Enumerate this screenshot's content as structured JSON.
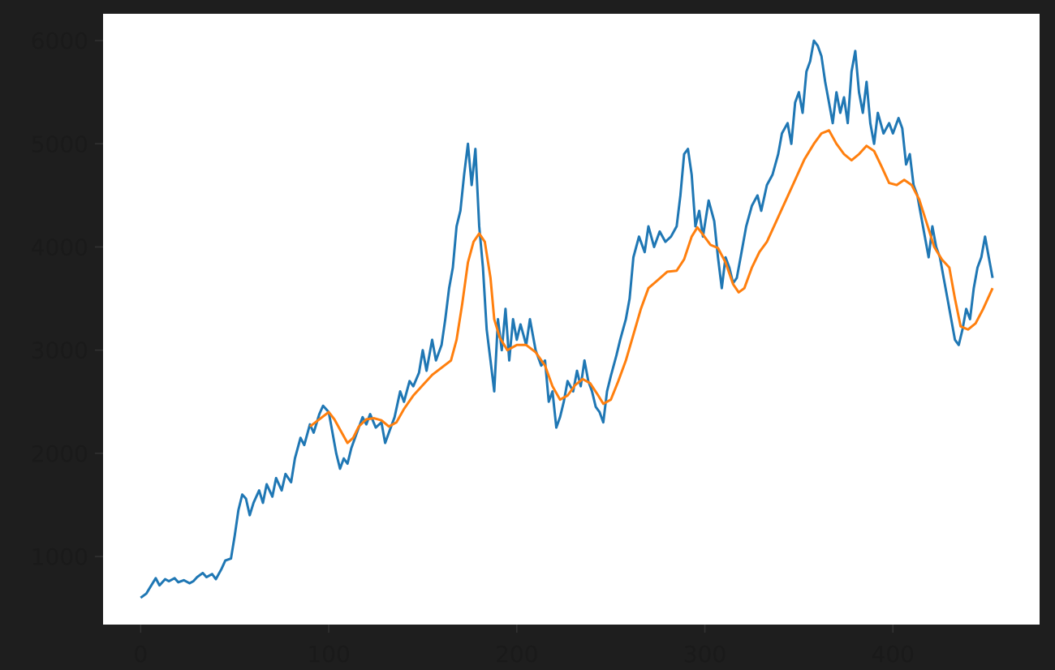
{
  "chart_data": {
    "type": "line",
    "title": "",
    "xlabel": "",
    "ylabel": "",
    "xlim": [
      -20,
      478
    ],
    "ylim": [
      340,
      6260
    ],
    "xticks": [
      0,
      100,
      200,
      300,
      400
    ],
    "yticks": [
      1000,
      2000,
      3000,
      4000,
      5000,
      6000
    ],
    "grid": false,
    "legend": "none",
    "background": "#1e1e1e",
    "plot_background": "#ffffff",
    "series": [
      {
        "color": "#1f77b4",
        "points": [
          [
            0,
            600
          ],
          [
            3,
            640
          ],
          [
            5,
            700
          ],
          [
            8,
            790
          ],
          [
            10,
            720
          ],
          [
            13,
            780
          ],
          [
            15,
            760
          ],
          [
            18,
            790
          ],
          [
            20,
            750
          ],
          [
            23,
            770
          ],
          [
            26,
            740
          ],
          [
            28,
            760
          ],
          [
            30,
            800
          ],
          [
            33,
            840
          ],
          [
            35,
            800
          ],
          [
            38,
            830
          ],
          [
            40,
            780
          ],
          [
            43,
            880
          ],
          [
            45,
            960
          ],
          [
            48,
            980
          ],
          [
            50,
            1200
          ],
          [
            52,
            1450
          ],
          [
            54,
            1600
          ],
          [
            56,
            1560
          ],
          [
            58,
            1400
          ],
          [
            60,
            1520
          ],
          [
            63,
            1640
          ],
          [
            65,
            1520
          ],
          [
            67,
            1700
          ],
          [
            70,
            1580
          ],
          [
            72,
            1760
          ],
          [
            75,
            1640
          ],
          [
            77,
            1800
          ],
          [
            80,
            1720
          ],
          [
            82,
            1950
          ],
          [
            85,
            2150
          ],
          [
            87,
            2080
          ],
          [
            90,
            2280
          ],
          [
            92,
            2200
          ],
          [
            95,
            2380
          ],
          [
            97,
            2460
          ],
          [
            100,
            2400
          ],
          [
            102,
            2200
          ],
          [
            104,
            2000
          ],
          [
            106,
            1850
          ],
          [
            108,
            1950
          ],
          [
            110,
            1900
          ],
          [
            112,
            2050
          ],
          [
            115,
            2200
          ],
          [
            118,
            2350
          ],
          [
            120,
            2280
          ],
          [
            122,
            2380
          ],
          [
            125,
            2250
          ],
          [
            128,
            2300
          ],
          [
            130,
            2100
          ],
          [
            132,
            2200
          ],
          [
            135,
            2350
          ],
          [
            138,
            2600
          ],
          [
            140,
            2500
          ],
          [
            143,
            2700
          ],
          [
            145,
            2650
          ],
          [
            148,
            2780
          ],
          [
            150,
            3000
          ],
          [
            152,
            2800
          ],
          [
            155,
            3100
          ],
          [
            157,
            2900
          ],
          [
            160,
            3050
          ],
          [
            162,
            3300
          ],
          [
            164,
            3600
          ],
          [
            166,
            3800
          ],
          [
            168,
            4200
          ],
          [
            170,
            4350
          ],
          [
            172,
            4700
          ],
          [
            174,
            5000
          ],
          [
            176,
            4600
          ],
          [
            178,
            4950
          ],
          [
            180,
            4200
          ],
          [
            182,
            3800
          ],
          [
            184,
            3200
          ],
          [
            186,
            2900
          ],
          [
            188,
            2600
          ],
          [
            190,
            3300
          ],
          [
            192,
            3000
          ],
          [
            194,
            3400
          ],
          [
            196,
            2900
          ],
          [
            198,
            3300
          ],
          [
            200,
            3100
          ],
          [
            202,
            3250
          ],
          [
            205,
            3050
          ],
          [
            207,
            3300
          ],
          [
            210,
            3000
          ],
          [
            213,
            2850
          ],
          [
            215,
            2900
          ],
          [
            217,
            2500
          ],
          [
            219,
            2600
          ],
          [
            221,
            2250
          ],
          [
            223,
            2350
          ],
          [
            225,
            2500
          ],
          [
            227,
            2700
          ],
          [
            230,
            2600
          ],
          [
            232,
            2800
          ],
          [
            234,
            2650
          ],
          [
            236,
            2900
          ],
          [
            238,
            2700
          ],
          [
            240,
            2600
          ],
          [
            242,
            2450
          ],
          [
            244,
            2400
          ],
          [
            246,
            2300
          ],
          [
            248,
            2600
          ],
          [
            250,
            2750
          ],
          [
            253,
            2950
          ],
          [
            255,
            3100
          ],
          [
            258,
            3300
          ],
          [
            260,
            3500
          ],
          [
            262,
            3900
          ],
          [
            265,
            4100
          ],
          [
            268,
            3950
          ],
          [
            270,
            4200
          ],
          [
            273,
            4000
          ],
          [
            276,
            4150
          ],
          [
            279,
            4050
          ],
          [
            282,
            4100
          ],
          [
            285,
            4200
          ],
          [
            287,
            4500
          ],
          [
            289,
            4900
          ],
          [
            291,
            4950
          ],
          [
            293,
            4700
          ],
          [
            295,
            4200
          ],
          [
            297,
            4350
          ],
          [
            299,
            4100
          ],
          [
            302,
            4450
          ],
          [
            305,
            4250
          ],
          [
            307,
            3900
          ],
          [
            309,
            3600
          ],
          [
            311,
            3900
          ],
          [
            313,
            3800
          ],
          [
            315,
            3650
          ],
          [
            317,
            3700
          ],
          [
            319,
            3900
          ],
          [
            322,
            4200
          ],
          [
            325,
            4400
          ],
          [
            328,
            4500
          ],
          [
            330,
            4350
          ],
          [
            333,
            4600
          ],
          [
            336,
            4700
          ],
          [
            339,
            4900
          ],
          [
            341,
            5100
          ],
          [
            344,
            5200
          ],
          [
            346,
            5000
          ],
          [
            348,
            5400
          ],
          [
            350,
            5500
          ],
          [
            352,
            5300
          ],
          [
            354,
            5700
          ],
          [
            356,
            5800
          ],
          [
            358,
            6000
          ],
          [
            360,
            5950
          ],
          [
            362,
            5850
          ],
          [
            364,
            5600
          ],
          [
            366,
            5400
          ],
          [
            368,
            5200
          ],
          [
            370,
            5500
          ],
          [
            372,
            5300
          ],
          [
            374,
            5450
          ],
          [
            376,
            5200
          ],
          [
            378,
            5700
          ],
          [
            380,
            5900
          ],
          [
            382,
            5500
          ],
          [
            384,
            5300
          ],
          [
            386,
            5600
          ],
          [
            388,
            5200
          ],
          [
            390,
            5000
          ],
          [
            392,
            5300
          ],
          [
            395,
            5100
          ],
          [
            398,
            5200
          ],
          [
            400,
            5100
          ],
          [
            403,
            5250
          ],
          [
            405,
            5150
          ],
          [
            407,
            4800
          ],
          [
            409,
            4900
          ],
          [
            411,
            4600
          ],
          [
            413,
            4500
          ],
          [
            415,
            4300
          ],
          [
            417,
            4100
          ],
          [
            419,
            3900
          ],
          [
            421,
            4200
          ],
          [
            423,
            4000
          ],
          [
            425,
            3900
          ],
          [
            427,
            3700
          ],
          [
            429,
            3500
          ],
          [
            431,
            3300
          ],
          [
            433,
            3100
          ],
          [
            435,
            3050
          ],
          [
            437,
            3200
          ],
          [
            439,
            3400
          ],
          [
            441,
            3300
          ],
          [
            443,
            3600
          ],
          [
            445,
            3800
          ],
          [
            447,
            3900
          ],
          [
            449,
            4100
          ],
          [
            451,
            3900
          ],
          [
            453,
            3700
          ]
        ]
      },
      {
        "color": "#ff7f0e",
        "points": [
          [
            90,
            2260
          ],
          [
            95,
            2330
          ],
          [
            100,
            2400
          ],
          [
            103,
            2330
          ],
          [
            106,
            2230
          ],
          [
            110,
            2100
          ],
          [
            113,
            2150
          ],
          [
            116,
            2260
          ],
          [
            120,
            2330
          ],
          [
            124,
            2340
          ],
          [
            128,
            2320
          ],
          [
            132,
            2260
          ],
          [
            136,
            2300
          ],
          [
            140,
            2430
          ],
          [
            145,
            2560
          ],
          [
            150,
            2660
          ],
          [
            155,
            2760
          ],
          [
            160,
            2830
          ],
          [
            165,
            2900
          ],
          [
            168,
            3100
          ],
          [
            171,
            3450
          ],
          [
            174,
            3850
          ],
          [
            177,
            4050
          ],
          [
            180,
            4130
          ],
          [
            183,
            4050
          ],
          [
            186,
            3700
          ],
          [
            188,
            3300
          ],
          [
            191,
            3120
          ],
          [
            195,
            3000
          ],
          [
            200,
            3050
          ],
          [
            205,
            3050
          ],
          [
            210,
            2980
          ],
          [
            215,
            2850
          ],
          [
            219,
            2650
          ],
          [
            223,
            2520
          ],
          [
            227,
            2560
          ],
          [
            231,
            2660
          ],
          [
            235,
            2720
          ],
          [
            239,
            2680
          ],
          [
            243,
            2570
          ],
          [
            246,
            2480
          ],
          [
            250,
            2520
          ],
          [
            254,
            2700
          ],
          [
            258,
            2900
          ],
          [
            262,
            3150
          ],
          [
            266,
            3400
          ],
          [
            270,
            3600
          ],
          [
            275,
            3680
          ],
          [
            280,
            3760
          ],
          [
            285,
            3770
          ],
          [
            289,
            3880
          ],
          [
            293,
            4100
          ],
          [
            296,
            4190
          ],
          [
            299,
            4120
          ],
          [
            303,
            4020
          ],
          [
            307,
            3990
          ],
          [
            311,
            3850
          ],
          [
            315,
            3640
          ],
          [
            318,
            3560
          ],
          [
            321,
            3600
          ],
          [
            325,
            3800
          ],
          [
            329,
            3950
          ],
          [
            333,
            4050
          ],
          [
            338,
            4250
          ],
          [
            343,
            4450
          ],
          [
            348,
            4650
          ],
          [
            353,
            4850
          ],
          [
            358,
            5000
          ],
          [
            362,
            5100
          ],
          [
            366,
            5130
          ],
          [
            370,
            5000
          ],
          [
            374,
            4900
          ],
          [
            378,
            4840
          ],
          [
            382,
            4900
          ],
          [
            386,
            4980
          ],
          [
            390,
            4930
          ],
          [
            394,
            4780
          ],
          [
            398,
            4620
          ],
          [
            402,
            4600
          ],
          [
            406,
            4650
          ],
          [
            410,
            4600
          ],
          [
            414,
            4460
          ],
          [
            418,
            4230
          ],
          [
            422,
            4000
          ],
          [
            426,
            3880
          ],
          [
            430,
            3800
          ],
          [
            433,
            3500
          ],
          [
            436,
            3230
          ],
          [
            440,
            3200
          ],
          [
            444,
            3260
          ],
          [
            448,
            3400
          ],
          [
            453,
            3600
          ]
        ]
      }
    ]
  }
}
